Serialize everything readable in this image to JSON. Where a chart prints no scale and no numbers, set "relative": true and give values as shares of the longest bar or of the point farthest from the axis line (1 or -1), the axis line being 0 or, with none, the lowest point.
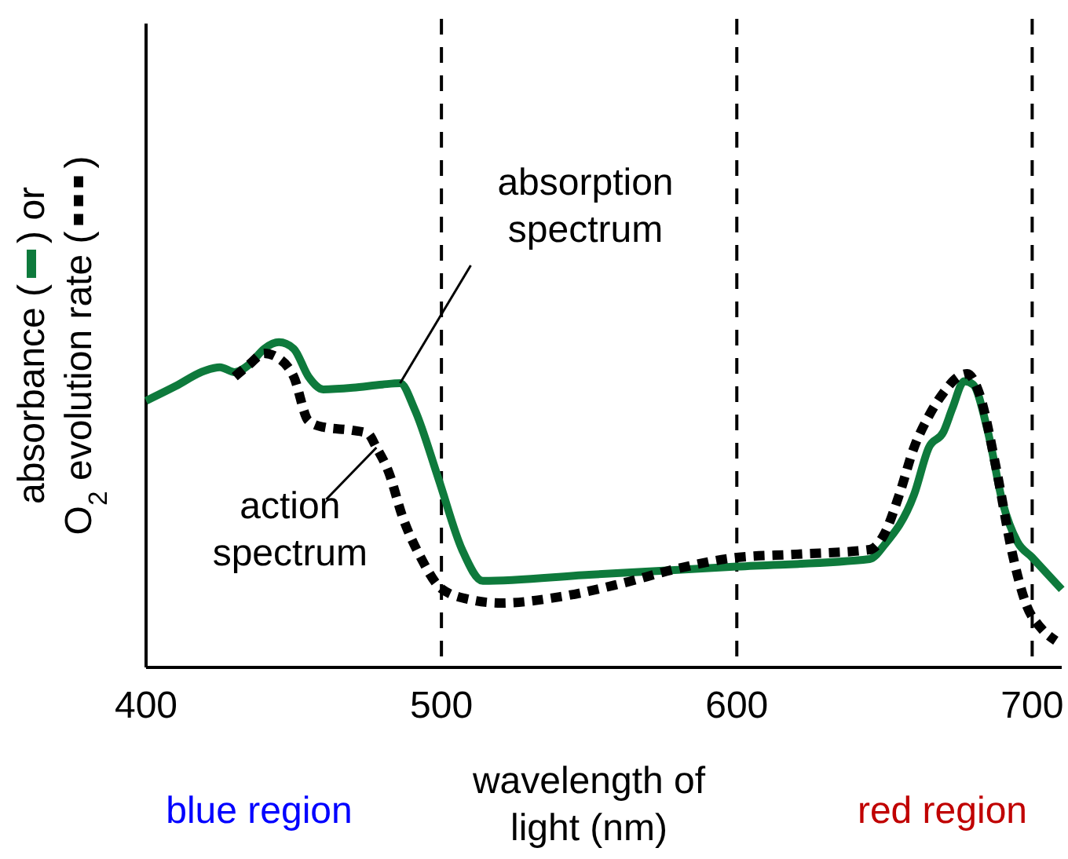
{
  "chart_data": {
    "type": "line",
    "relative": true,
    "ylabel": "absorbance ( ) or O$_{2}$ evolution rate ( )",
    "xlabel": "wavelength of light (nm)",
    "xlim": [
      400,
      710
    ],
    "xticks": [
      400,
      500,
      600,
      700
    ],
    "grid": false,
    "series": [
      {
        "color": "#0e7a3c",
        "line_style": "solid",
        "x": [
          400,
          410,
          420,
          425,
          430,
          435,
          440,
          445,
          450,
          455,
          460,
          470,
          480,
          486,
          491,
          499,
          507,
          514,
          550,
          600,
          645,
          650,
          660,
          665,
          670,
          673,
          677,
          680,
          685,
          690,
          695,
          700,
          710
        ],
        "values": [
          0.82,
          0.865,
          0.913,
          0.923,
          0.908,
          0.932,
          0.98,
          1,
          0.98,
          0.894,
          0.855,
          0.86,
          0.87,
          0.874,
          0.792,
          0.58,
          0.362,
          0.266,
          0.285,
          0.31,
          0.333,
          0.377,
          0.531,
          0.676,
          0.725,
          0.797,
          0.88,
          0.87,
          0.725,
          0.507,
          0.386,
          0.338,
          0.24
        ]
      },
      {
        "color": "#000000",
        "line_style": "dotted",
        "x": [
          430,
          435,
          440,
          445,
          450,
          455,
          460,
          470,
          475,
          478,
          482,
          487,
          493,
          500,
          510,
          520,
          540,
          560,
          580,
          600,
          620,
          645,
          650,
          655,
          660,
          665,
          670,
          675,
          678,
          682,
          688,
          693,
          698,
          703,
          708
        ],
        "values": [
          0.894,
          0.932,
          0.966,
          0.95,
          0.894,
          0.758,
          0.739,
          0.729,
          0.72,
          0.676,
          0.604,
          0.459,
          0.338,
          0.242,
          0.208,
          0.198,
          0.217,
          0.256,
          0.304,
          0.338,
          0.348,
          0.362,
          0.411,
          0.531,
          0.676,
          0.773,
          0.845,
          0.894,
          0.903,
          0.845,
          0.604,
          0.362,
          0.193,
          0.121,
          0.082
        ]
      }
    ],
    "ref_lines": [
      {
        "axis": "x",
        "value": 500,
        "line_style": "dashed",
        "color": "#000000"
      },
      {
        "axis": "x",
        "value": 600,
        "line_style": "dashed",
        "color": "#000000"
      },
      {
        "axis": "x",
        "value": 700,
        "line_style": "dashed",
        "color": "#000000"
      }
    ],
    "annotations": [
      {
        "text": "absorption spectrum",
        "x": 486,
        "y": 0.874
      },
      {
        "text": "action spectrum",
        "x": 478,
        "y": 0.676
      },
      "blue region",
      "red region"
    ]
  }
}
